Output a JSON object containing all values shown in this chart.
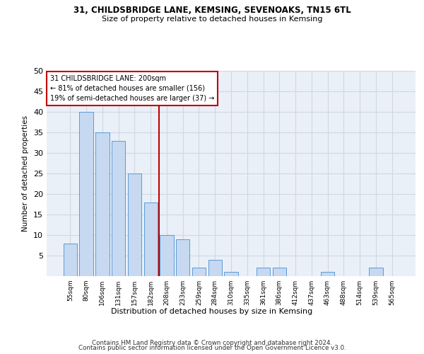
{
  "title_line1": "31, CHILDSBRIDGE LANE, KEMSING, SEVENOAKS, TN15 6TL",
  "title_line2": "Size of property relative to detached houses in Kemsing",
  "xlabel": "Distribution of detached houses by size in Kemsing",
  "ylabel": "Number of detached properties",
  "categories": [
    "55sqm",
    "80sqm",
    "106sqm",
    "131sqm",
    "157sqm",
    "182sqm",
    "208sqm",
    "233sqm",
    "259sqm",
    "284sqm",
    "310sqm",
    "335sqm",
    "361sqm",
    "386sqm",
    "412sqm",
    "437sqm",
    "463sqm",
    "488sqm",
    "514sqm",
    "539sqm",
    "565sqm"
  ],
  "values": [
    8,
    40,
    35,
    33,
    25,
    18,
    10,
    9,
    2,
    4,
    1,
    0,
    2,
    2,
    0,
    0,
    1,
    0,
    0,
    2,
    0
  ],
  "bar_color": "#c6d9f0",
  "bar_edge_color": "#5b9bd5",
  "vline_x_index": 5.5,
  "vline_color": "#c00000",
  "annotation_text": "31 CHILDSBRIDGE LANE: 200sqm\n← 81% of detached houses are smaller (156)\n19% of semi-detached houses are larger (37) →",
  "annotation_box_color": "#ffffff",
  "annotation_box_edge": "#c00000",
  "ylim": [
    0,
    50
  ],
  "yticks": [
    0,
    5,
    10,
    15,
    20,
    25,
    30,
    35,
    40,
    45,
    50
  ],
  "grid_color": "#d0d8e4",
  "background_color": "#eaf0f8",
  "footer_line1": "Contains HM Land Registry data © Crown copyright and database right 2024.",
  "footer_line2": "Contains public sector information licensed under the Open Government Licence v3.0."
}
